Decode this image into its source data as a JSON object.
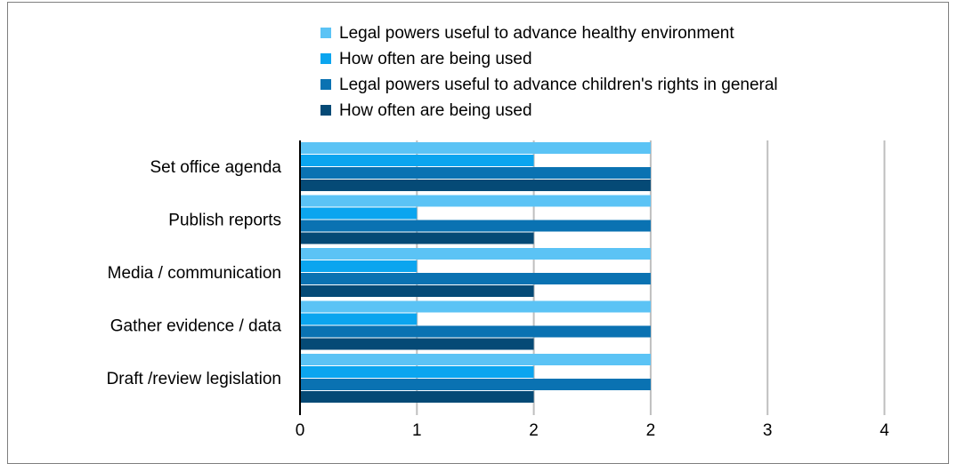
{
  "chart_data": {
    "type": "bar",
    "orientation": "horizontal",
    "categories": [
      "Set office agenda",
      "Publish reports",
      "Media / communication",
      "Gather evidence / data",
      "Draft /review legislation"
    ],
    "series": [
      {
        "name": "Legal powers useful to advance healthy environment",
        "color": "#5bc3f5",
        "values": [
          3,
          3,
          3,
          3,
          3
        ]
      },
      {
        "name": "How often are being used",
        "color": "#0ba5ef",
        "values": [
          2,
          1,
          1,
          1,
          2
        ]
      },
      {
        "name": "Legal powers useful to advance children's rights in general",
        "color": "#0a72b2",
        "values": [
          3,
          3,
          3,
          3,
          3
        ]
      },
      {
        "name": "How often are being used",
        "color": "#054a76",
        "values": [
          3,
          2,
          2,
          2,
          2
        ]
      }
    ],
    "x_tick_labels": [
      "0",
      "1",
      "2",
      "2",
      "3",
      "4"
    ],
    "grid": true,
    "legend_position": "top"
  }
}
